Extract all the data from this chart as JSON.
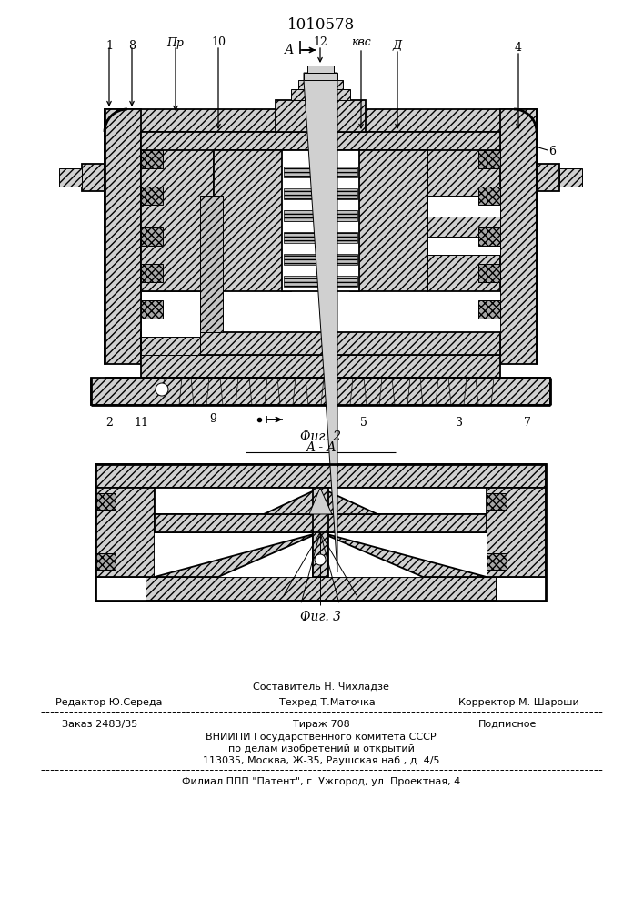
{
  "patent_number": "1010578",
  "bg": "#ffffff",
  "lc": "#000000",
  "hfc": "#d0d0d0",
  "fig1_caption": "Фиг. 2",
  "fig2_caption": "Фиг. 3",
  "section_label": "A - A",
  "footer_sostavitel": "Составитель Н. Чихладзе",
  "footer_redaktor": "Редактор Ю.Середа",
  "footer_tehred": "Техред Т.Маточка",
  "footer_korrektor": "Корректор М. Шароши",
  "footer_zakaz": "Заказ 2483/35",
  "footer_tirazh": "Тираж 708",
  "footer_podpisnoe": "Подписное",
  "footer_vniippi": "ВНИИПИ Государственного комитета СССР",
  "footer_po_delam": "по делам изобретений и открытий",
  "footer_address": "113035, Москва, Ж-35, Раушская наб., д. 4/5",
  "footer_filial": "Филиал ППП \"Патент\", г. Ужгород, ул. Проектная, 4"
}
